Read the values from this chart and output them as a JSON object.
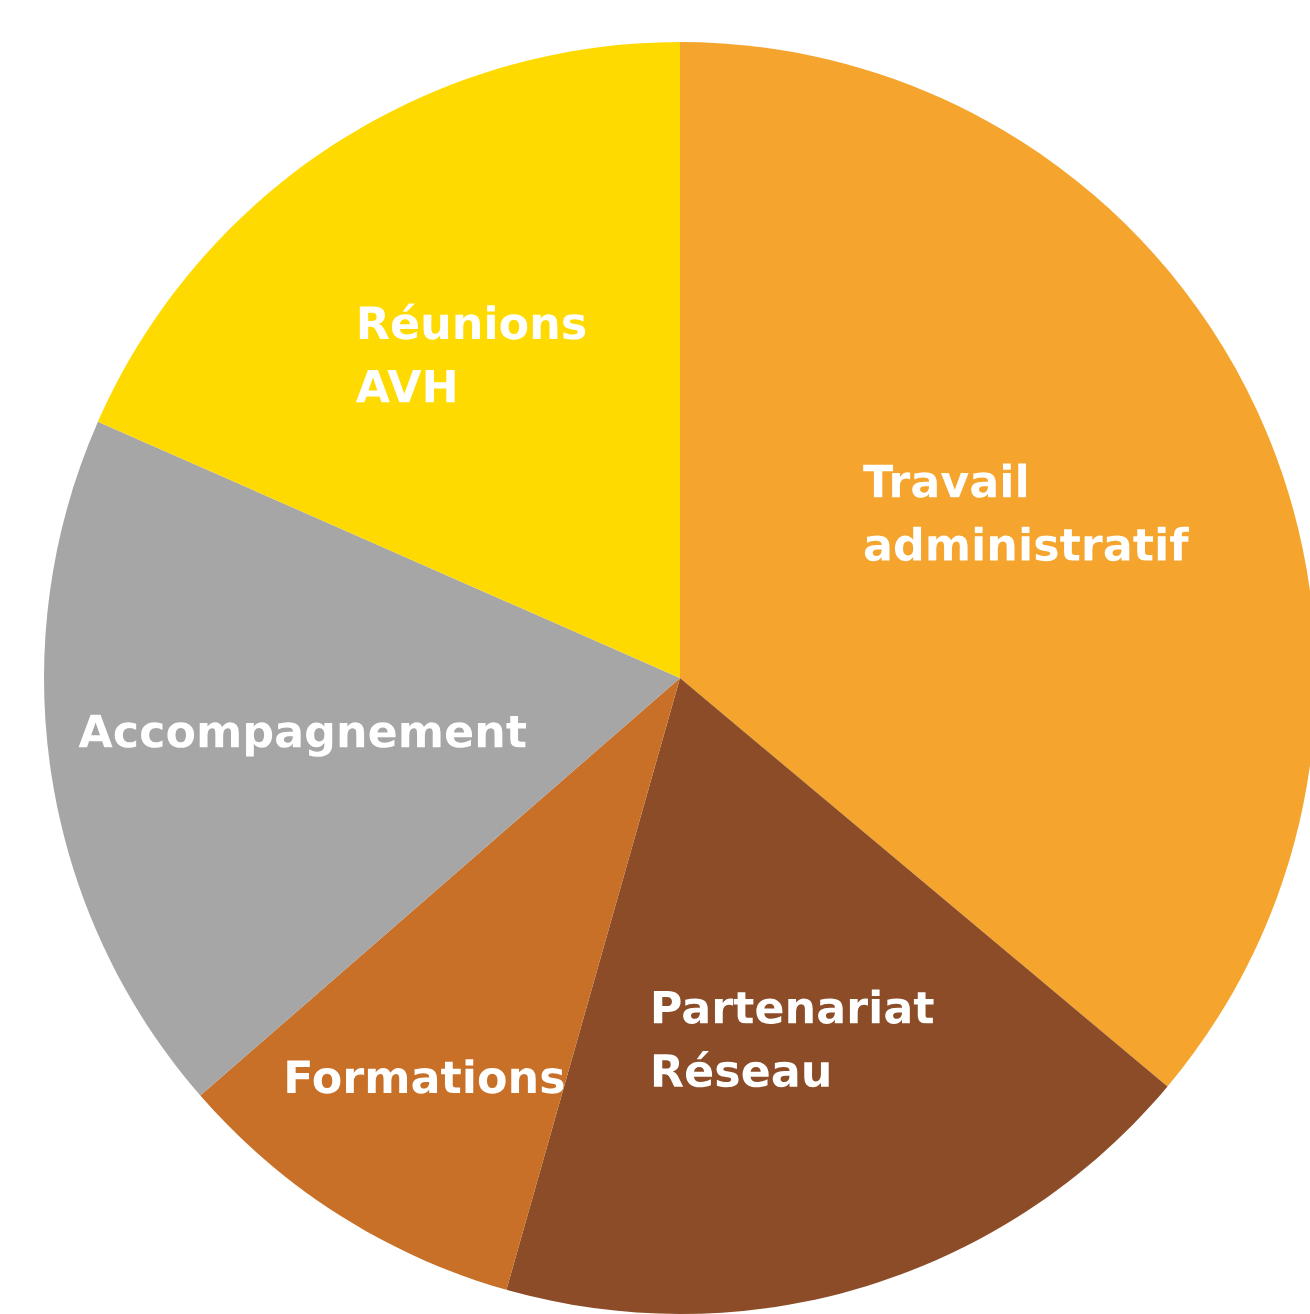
{
  "chart_data": {
    "type": "pie",
    "categories": [
      "Travail\nadministratif",
      "Partenariat\nRéseau",
      "Formations",
      "Accompagnement",
      "Réunions\nAVH"
    ],
    "values": [
      36.1,
      18.3,
      9.2,
      18.0,
      18.4
    ],
    "colors": [
      "#f5a52d",
      "#8b4c27",
      "#c87028",
      "#a6a6a6",
      "#ffda00"
    ]
  }
}
